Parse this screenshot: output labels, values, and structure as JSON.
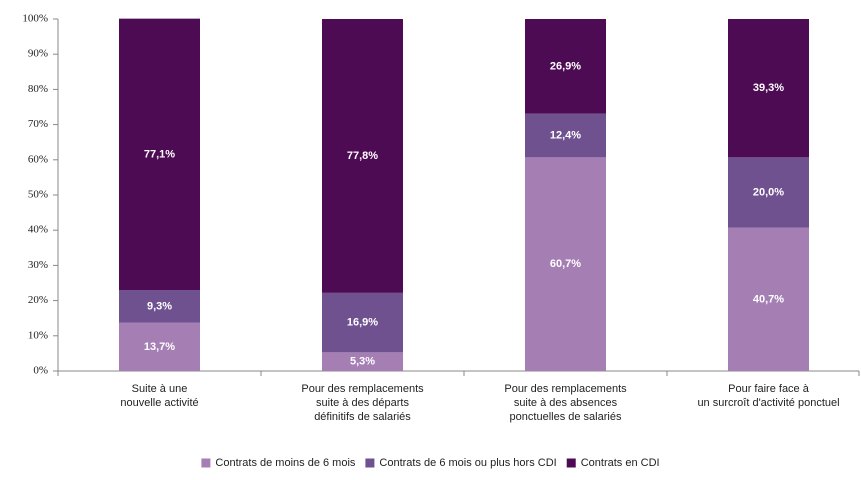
{
  "chart_data": {
    "type": "bar",
    "stacked": true,
    "categories": [
      [
        "Suite à une",
        "nouvelle activité"
      ],
      [
        "Pour des remplacements",
        "suite à des départs",
        "définitifs de salariés"
      ],
      [
        "Pour des remplacements",
        "suite à des absences",
        "ponctuelles de salariés"
      ],
      [
        "Pour faire face à",
        "un surcroît d'activité ponctuel"
      ]
    ],
    "series": [
      {
        "name": "Contrats de moins de 6 mois",
        "color": "#a57fb4",
        "values": [
          13.7,
          5.3,
          60.7,
          40.7
        ],
        "value_labels": [
          "13,7%",
          "5,3%",
          "60,7%",
          "40,7%"
        ]
      },
      {
        "name": "Contrats de 6 mois ou plus hors CDI",
        "color": "#6f5190",
        "values": [
          9.3,
          16.9,
          12.4,
          20.0
        ],
        "value_labels": [
          "9,3%",
          "16,9%",
          "12,4%",
          "20,0%"
        ]
      },
      {
        "name": "Contrats en CDI",
        "color": "#4d0b53",
        "values": [
          77.1,
          77.8,
          26.9,
          39.3
        ],
        "value_labels": [
          "77,1%",
          "77,8%",
          "26,9%",
          "39,3%"
        ]
      }
    ],
    "ylim": [
      0,
      100
    ],
    "yticks": [
      {
        "value": 0,
        "label": "0%"
      },
      {
        "value": 10,
        "label": "10%"
      },
      {
        "value": 20,
        "label": "20%"
      },
      {
        "value": 30,
        "label": "30%"
      },
      {
        "value": 40,
        "label": "40%"
      },
      {
        "value": 50,
        "label": "50%"
      },
      {
        "value": 60,
        "label": "60%"
      },
      {
        "value": 70,
        "label": "70%"
      },
      {
        "value": 80,
        "label": "80%"
      },
      {
        "value": 90,
        "label": "90%"
      },
      {
        "value": 100,
        "label": "100%"
      }
    ],
    "legend": "bottom"
  }
}
